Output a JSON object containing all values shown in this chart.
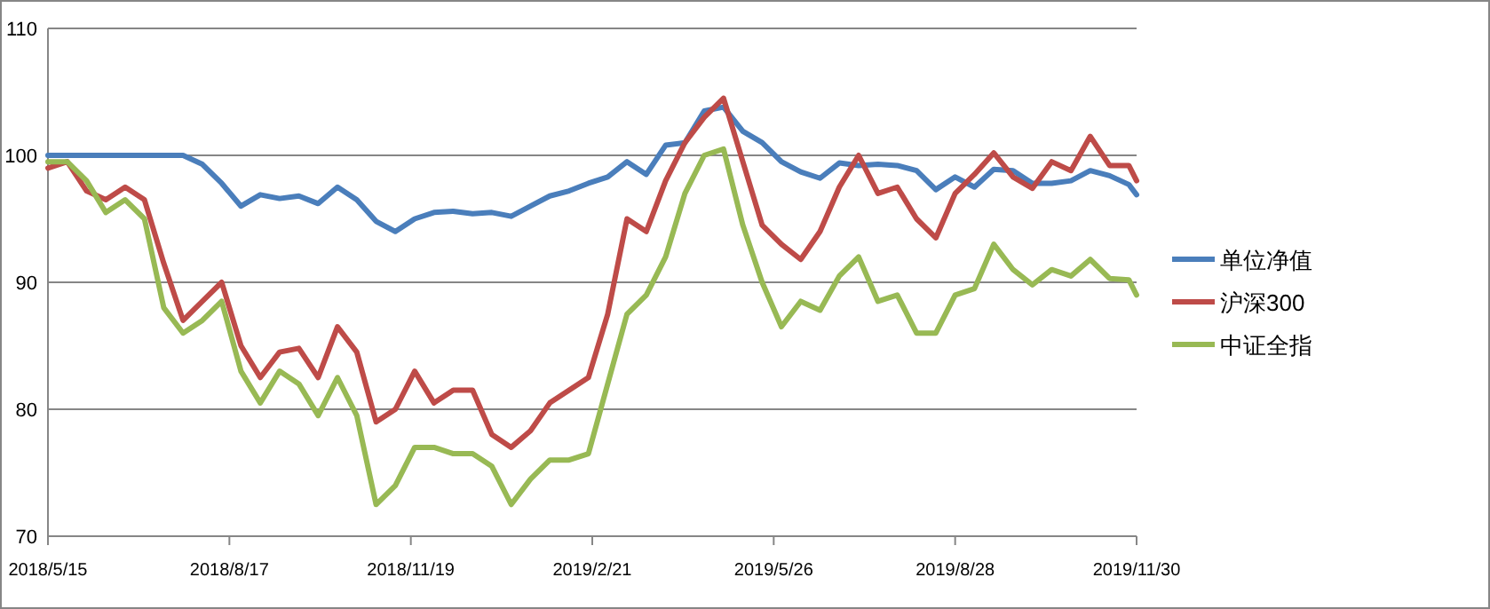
{
  "chart_data": {
    "type": "line",
    "x": [
      "2018-05-15",
      "2018-05-25",
      "2018-06-04",
      "2018-06-14",
      "2018-06-24",
      "2018-07-04",
      "2018-07-14",
      "2018-07-24",
      "2018-08-03",
      "2018-08-13",
      "2018-08-23",
      "2018-09-02",
      "2018-09-12",
      "2018-09-22",
      "2018-10-02",
      "2018-10-12",
      "2018-10-22",
      "2018-11-01",
      "2018-11-11",
      "2018-11-21",
      "2018-12-01",
      "2018-12-11",
      "2018-12-21",
      "2018-12-31",
      "2019-01-10",
      "2019-01-20",
      "2019-01-30",
      "2019-02-09",
      "2019-02-19",
      "2019-03-01",
      "2019-03-11",
      "2019-03-21",
      "2019-03-31",
      "2019-04-10",
      "2019-04-20",
      "2019-04-30",
      "2019-05-10",
      "2019-05-20",
      "2019-05-30",
      "2019-06-09",
      "2019-06-19",
      "2019-06-29",
      "2019-07-09",
      "2019-07-19",
      "2019-07-29",
      "2019-08-08",
      "2019-08-18",
      "2019-08-28",
      "2019-09-07",
      "2019-09-17",
      "2019-09-27",
      "2019-10-07",
      "2019-10-17",
      "2019-10-27",
      "2019-11-06",
      "2019-11-16",
      "2019-11-26",
      "2019-11-30"
    ],
    "series": [
      {
        "name": "单位净值",
        "color": "#4a7ebb",
        "values": [
          100,
          100,
          100,
          100,
          100,
          100,
          100,
          100,
          99.3,
          97.8,
          96,
          96.9,
          96.6,
          96.8,
          96.2,
          97.5,
          96.5,
          94.8,
          94,
          95,
          95.5,
          95.6,
          95.4,
          95.5,
          95.2,
          96,
          96.8,
          97.2,
          97.8,
          98.3,
          99.5,
          98.5,
          100.8,
          101,
          103.5,
          103.8,
          101.9,
          101,
          99.5,
          98.7,
          98.2,
          99.4,
          99.2,
          99.3,
          99.2,
          98.8,
          97.3,
          98.3,
          97.5,
          98.9,
          98.8,
          97.8,
          97.8,
          98,
          98.8,
          98.4,
          97.7,
          96.9
        ]
      },
      {
        "name": "沪深300",
        "color": "#be4b48",
        "values": [
          99,
          99.5,
          97.2,
          96.5,
          97.5,
          96.5,
          91.5,
          87,
          88.5,
          90,
          85,
          82.5,
          84.5,
          84.8,
          82.5,
          86.5,
          84.5,
          79,
          80,
          83,
          80.5,
          81.5,
          81.5,
          78,
          77,
          78.3,
          80.5,
          81.5,
          82.5,
          87.5,
          95,
          94,
          98,
          101,
          103,
          104.5,
          99.5,
          94.5,
          93,
          91.8,
          94,
          97.5,
          100,
          97,
          97.5,
          95,
          93.5,
          97,
          98.5,
          100.2,
          98.3,
          97.4,
          99.5,
          98.8,
          101.5,
          99.2,
          99.2,
          98
        ]
      },
      {
        "name": "中证全指",
        "color": "#98b954",
        "values": [
          99.5,
          99.5,
          98,
          95.5,
          96.5,
          95,
          88,
          86,
          87,
          88.5,
          83,
          80.5,
          83,
          82,
          79.5,
          82.5,
          79.5,
          72.5,
          74,
          77,
          77,
          76.5,
          76.5,
          75.5,
          72.5,
          74.5,
          76,
          76,
          76.5,
          82,
          87.5,
          89,
          92,
          97,
          100,
          100.5,
          94.5,
          90,
          86.5,
          88.5,
          87.8,
          90.5,
          92,
          88.5,
          89,
          86,
          86,
          89,
          89.5,
          93,
          91,
          89.8,
          91,
          90.5,
          91.8,
          90.3,
          90.2,
          89
        ]
      }
    ],
    "xlim": [
      "2018-05-15",
      "2019-11-30"
    ],
    "xticks": [
      {
        "value": "2018-05-15",
        "label": "2018/5/15"
      },
      {
        "value": "2018-08-17",
        "label": "2018/8/17"
      },
      {
        "value": "2018-11-19",
        "label": "2018/11/19"
      },
      {
        "value": "2019-02-21",
        "label": "2019/2/21"
      },
      {
        "value": "2019-05-26",
        "label": "2019/5/26"
      },
      {
        "value": "2019-08-28",
        "label": "2019/8/28"
      },
      {
        "value": "2019-11-30",
        "label": "2019/11/30"
      }
    ],
    "ylim": [
      70,
      110
    ],
    "yticks": [
      70,
      80,
      90,
      100,
      110
    ],
    "grid": "y",
    "legend": "right",
    "marker": "none",
    "line_style": "solid"
  }
}
